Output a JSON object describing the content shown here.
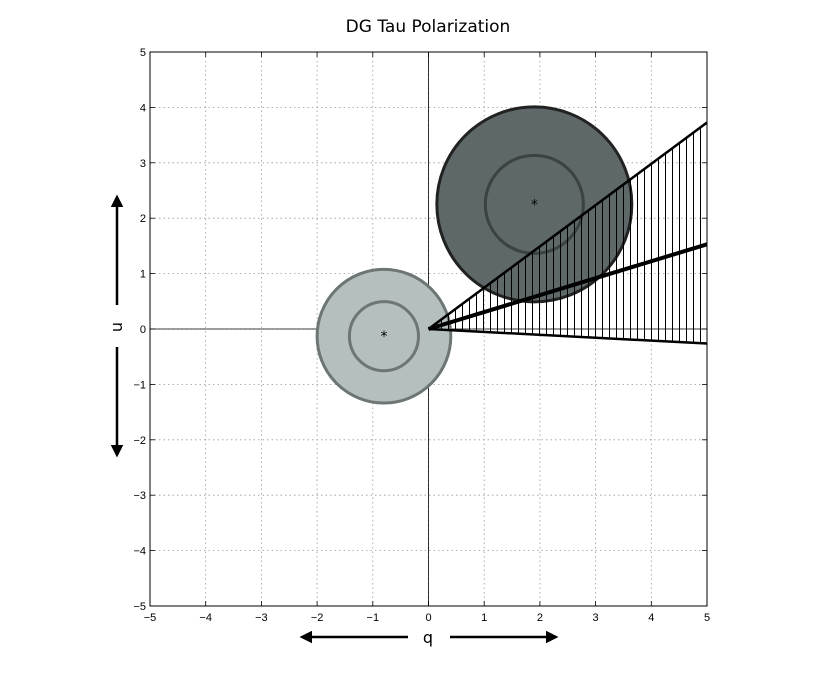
{
  "chart_data": {
    "type": "scatter",
    "title": "DG Tau Polarization",
    "xlabel": "q",
    "ylabel": "u",
    "xlim": [
      -5,
      5
    ],
    "ylim": [
      -5,
      5
    ],
    "x_ticks": [
      "−5",
      "−4",
      "−3",
      "−2",
      "−1",
      "0",
      "1",
      "2",
      "3",
      "4",
      "5"
    ],
    "y_ticks": [
      "−5",
      "−4",
      "−3",
      "−2",
      "−1",
      "0",
      "1",
      "2",
      "3",
      "4",
      "5"
    ],
    "grid": true,
    "points": [
      {
        "q": -0.8,
        "u": -0.13,
        "inner_radius": 0.62,
        "outer_radius": 1.2,
        "fill": "#b5bfbf"
      },
      {
        "q": 1.9,
        "u": 2.25,
        "inner_radius": 0.88,
        "outer_radius": 1.75,
        "fill": "#5e6869"
      }
    ],
    "wedge": {
      "origin": [
        0,
        0
      ],
      "angle_upper_deg": 36.7,
      "angle_center_deg": 17.0,
      "angle_lower_deg": -3.0
    },
    "colors": {
      "outline_light": "#6d7575",
      "outline_dark": "#222222",
      "grid": "#999999"
    }
  }
}
